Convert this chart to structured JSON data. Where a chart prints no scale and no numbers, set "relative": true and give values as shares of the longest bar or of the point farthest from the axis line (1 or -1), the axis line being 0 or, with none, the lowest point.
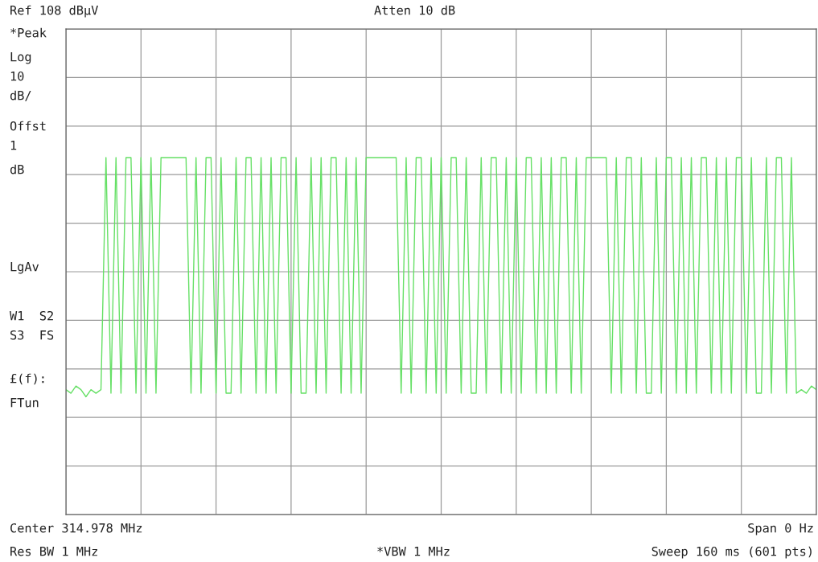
{
  "chart_data": {
    "type": "line",
    "relative": true,
    "grid": true,
    "tick_labels": false,
    "legend": false,
    "categories": [
      null,
      null,
      null,
      null,
      null,
      null,
      null,
      null,
      null,
      null,
      null,
      null,
      null,
      null,
      null,
      null,
      null,
      null,
      null,
      null,
      null,
      null,
      null,
      null,
      null,
      null,
      null,
      null,
      null,
      null,
      null,
      null,
      null,
      null,
      null,
      null,
      null,
      null,
      null,
      null,
      null,
      null,
      null,
      null,
      null,
      null,
      null,
      null,
      null,
      null,
      null,
      null,
      null,
      null,
      null,
      null,
      null,
      null,
      null,
      null,
      null,
      null,
      null,
      null,
      null,
      null,
      null,
      null,
      null,
      null,
      null,
      null,
      null,
      null,
      null,
      null,
      null,
      null,
      null,
      null,
      null,
      null,
      null,
      null,
      null,
      null,
      null,
      null,
      null,
      null,
      null,
      null,
      null,
      null,
      null,
      null,
      null,
      null,
      null,
      null,
      null,
      null,
      null,
      null,
      null,
      null,
      null,
      null,
      null,
      null,
      null,
      null,
      null,
      null,
      null,
      null,
      null,
      null,
      null,
      null,
      null,
      null,
      null,
      null,
      null,
      null,
      null,
      null,
      null,
      null,
      null,
      null,
      null,
      null,
      null,
      null,
      null,
      null,
      null,
      null,
      null,
      null,
      null,
      null,
      null,
      null,
      null,
      null,
      null,
      null,
      null
    ],
    "series": [
      {
        "color": "#66e066",
        "values": [
          0.35,
          0.34,
          0.36,
          0.35,
          0.33,
          0.35,
          0.34,
          0.35,
          1,
          0.34,
          1,
          0.34,
          1,
          1,
          0.34,
          1,
          0.34,
          1,
          0.34,
          1,
          1,
          1,
          1,
          1,
          1,
          0.34,
          1,
          0.34,
          1,
          1,
          0.34,
          1,
          0.34,
          0.34,
          1,
          0.34,
          1,
          1,
          0.34,
          1,
          0.34,
          1,
          0.34,
          1,
          1,
          0.34,
          1,
          0.34,
          0.34,
          1,
          0.34,
          1,
          0.34,
          1,
          1,
          0.34,
          1,
          0.34,
          1,
          0.34,
          1,
          1,
          1,
          1,
          1,
          1,
          1,
          0.34,
          1,
          0.34,
          1,
          1,
          0.34,
          1,
          0.34,
          1,
          0.34,
          1,
          1,
          0.34,
          1,
          0.34,
          0.34,
          1,
          0.34,
          1,
          1,
          0.34,
          1,
          0.34,
          1,
          0.34,
          1,
          1,
          0.34,
          1,
          0.34,
          1,
          0.34,
          1,
          1,
          0.34,
          1,
          0.34,
          1,
          1,
          1,
          1,
          1,
          0.34,
          1,
          0.34,
          1,
          1,
          0.34,
          1,
          0.34,
          0.34,
          1,
          0.34,
          1,
          1,
          0.34,
          1,
          0.34,
          1,
          0.34,
          1,
          1,
          0.34,
          1,
          0.34,
          1,
          0.34,
          1,
          1,
          0.34,
          1,
          0.34,
          0.34,
          1,
          0.34,
          1,
          1,
          0.34,
          1,
          0.34,
          0.35,
          0.34,
          0.36,
          0.35
        ]
      }
    ],
    "annotations": [
      "Ref 108 dBµV",
      "Atten 10 dB",
      "*Peak",
      "Log",
      "10",
      "dB/",
      "Offst",
      "1",
      "dB",
      "LgAv",
      "W1  S2",
      "S3  FS",
      "£(f):",
      "FTun",
      "Center 314.978 MHz",
      "Span 0 Hz",
      "Res BW 1 MHz",
      "*VBW 1 MHz",
      "Sweep 160 ms (601 pts)"
    ]
  }
}
